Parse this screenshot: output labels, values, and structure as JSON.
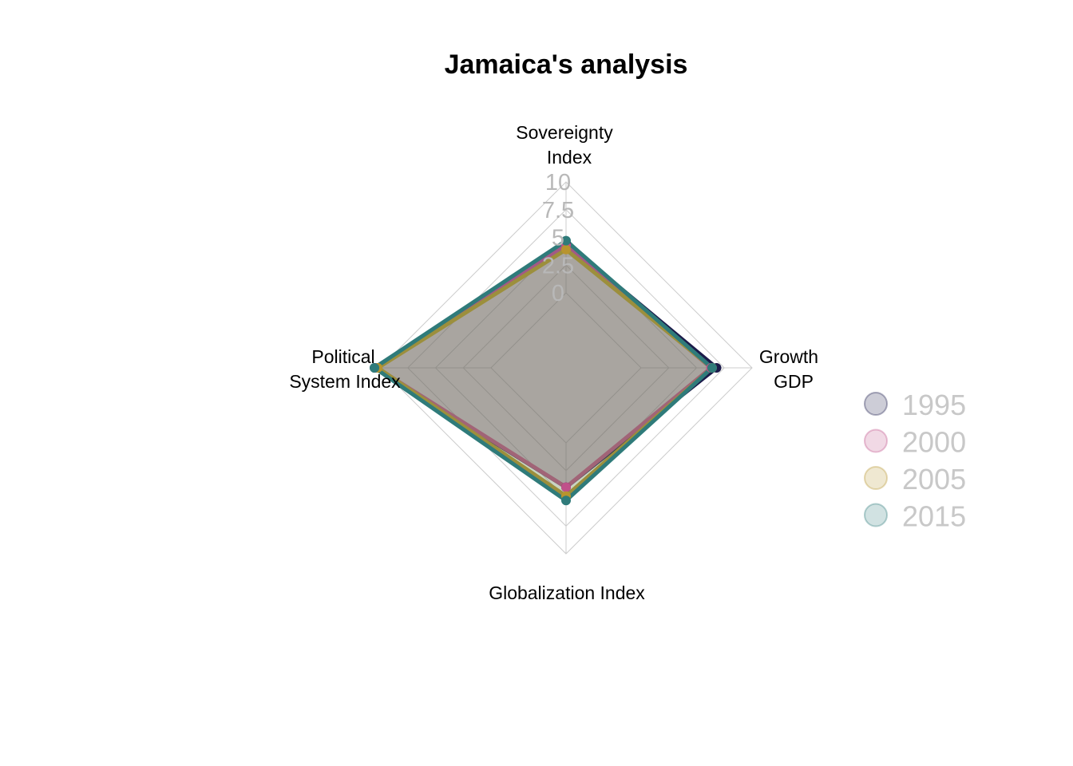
{
  "chart_data": {
    "type": "radar",
    "title": "Jamaica's analysis",
    "axes": [
      {
        "key": "sovereignty",
        "label_lines": [
          "Sovereignty",
          "Index"
        ]
      },
      {
        "key": "growth",
        "label_lines": [
          "Growth",
          "GDP"
        ]
      },
      {
        "key": "globalization",
        "label_lines": [
          "Globalization Index"
        ]
      },
      {
        "key": "political",
        "label_lines": [
          "Political",
          "System Index"
        ]
      }
    ],
    "range": [
      0,
      10
    ],
    "ticks": [
      "0",
      "2.5",
      "5",
      "7.5",
      "10"
    ],
    "series": [
      {
        "name": "1995",
        "color": "#1b1b4a",
        "values": [
          4.5,
          6.8,
          4.0,
          10.5
        ]
      },
      {
        "name": "2000",
        "color": "#c0508a",
        "values": [
          4.3,
          6.3,
          4.0,
          10.3
        ]
      },
      {
        "name": "2005",
        "color": "#b8942e",
        "values": [
          3.9,
          6.4,
          4.8,
          10.2
        ]
      },
      {
        "name": "2015",
        "color": "#2f7b7a",
        "values": [
          4.7,
          6.4,
          5.2,
          10.5
        ]
      }
    ],
    "legend_position": "right"
  }
}
